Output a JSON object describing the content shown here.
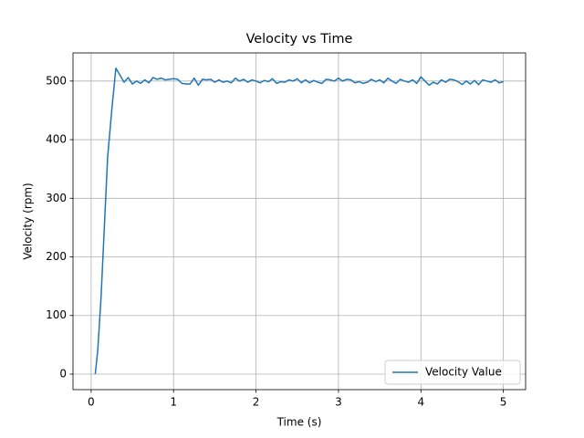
{
  "chart_data": {
    "type": "line",
    "title": "Velocity vs Time",
    "x_label": "Time (s)",
    "y_label": "Velocity (rpm)",
    "x": [
      0.05,
      0.08,
      0.12,
      0.16,
      0.2,
      0.25,
      0.3,
      0.35,
      0.4,
      0.45,
      0.5,
      0.55,
      0.6,
      0.65,
      0.7,
      0.75,
      0.8,
      0.85,
      0.9,
      0.95,
      1.0,
      1.05,
      1.1,
      1.15,
      1.2,
      1.25,
      1.3,
      1.35,
      1.4,
      1.45,
      1.5,
      1.55,
      1.6,
      1.65,
      1.7,
      1.75,
      1.8,
      1.85,
      1.9,
      1.95,
      2.0,
      2.05,
      2.1,
      2.15,
      2.2,
      2.25,
      2.3,
      2.35,
      2.4,
      2.45,
      2.5,
      2.55,
      2.6,
      2.65,
      2.7,
      2.75,
      2.8,
      2.85,
      2.9,
      2.95,
      3.0,
      3.05,
      3.1,
      3.15,
      3.2,
      3.25,
      3.3,
      3.35,
      3.4,
      3.45,
      3.5,
      3.55,
      3.6,
      3.65,
      3.7,
      3.75,
      3.8,
      3.85,
      3.9,
      3.95,
      4.0,
      4.05,
      4.1,
      4.15,
      4.2,
      4.25,
      4.3,
      4.35,
      4.4,
      4.45,
      4.5,
      4.55,
      4.6,
      4.65,
      4.7,
      4.75,
      4.8,
      4.85,
      4.9,
      4.95,
      5.0
    ],
    "series": [
      {
        "name": "Velocity Value",
        "color": "#1f77b4",
        "values": [
          0,
          40,
          130,
          250,
          370,
          450,
          522,
          510,
          498,
          506,
          495,
          500,
          496,
          502,
          497,
          506,
          503,
          505,
          502,
          503,
          504,
          503,
          496,
          495,
          495,
          505,
          493,
          503,
          502,
          503,
          498,
          502,
          498,
          500,
          497,
          505,
          500,
          503,
          498,
          502,
          500,
          497,
          501,
          499,
          504,
          496,
          499,
          498,
          502,
          500,
          504,
          497,
          502,
          497,
          501,
          498,
          496,
          503,
          502,
          500,
          505,
          500,
          503,
          502,
          497,
          499,
          496,
          498,
          503,
          499,
          502,
          497,
          505,
          500,
          496,
          503,
          500,
          498,
          502,
          496,
          507,
          500,
          493,
          498,
          495,
          502,
          498,
          503,
          502,
          499,
          494,
          500,
          495,
          501,
          494,
          502,
          500,
          498,
          502,
          497,
          499
        ]
      }
    ],
    "xlim": [
      -0.22,
      5.27
    ],
    "ylim": [
      -26.5,
      548
    ],
    "xticks": [
      0,
      1,
      2,
      3,
      4,
      5
    ],
    "yticks": [
      0,
      100,
      200,
      300,
      400,
      500
    ],
    "grid": true,
    "legend": "lower right"
  }
}
